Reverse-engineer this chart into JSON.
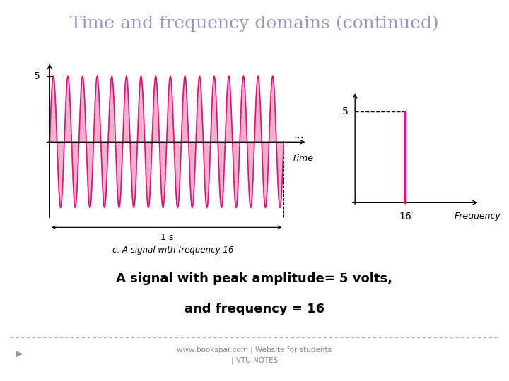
{
  "title": "Time and frequency domains (continued)",
  "title_color": "#9999bb",
  "title_fontsize": 18,
  "bg_color": "#ffffff",
  "signal_color": "#dd1177",
  "signal_fill_color": "#f0b0cc",
  "amplitude": 5,
  "frequency": 16,
  "duration": 1.0,
  "caption": "c. A signal with frequency 16",
  "bottom_text1": "A signal with peak amplitude= 5 volts,",
  "bottom_text2": "and frequency = 16",
  "footer_text1": "www.bookspar.com | Website for students",
  "footer_text2": "| VTU NOTES",
  "footer_color": "#888888",
  "dots_text": "...",
  "time_label": "Time",
  "freq_label": "Frequency",
  "label_16": "16",
  "label_5_left": "5",
  "label_5_right": "5",
  "label_1s": "1 s",
  "separator_color": "#aaaaaa"
}
